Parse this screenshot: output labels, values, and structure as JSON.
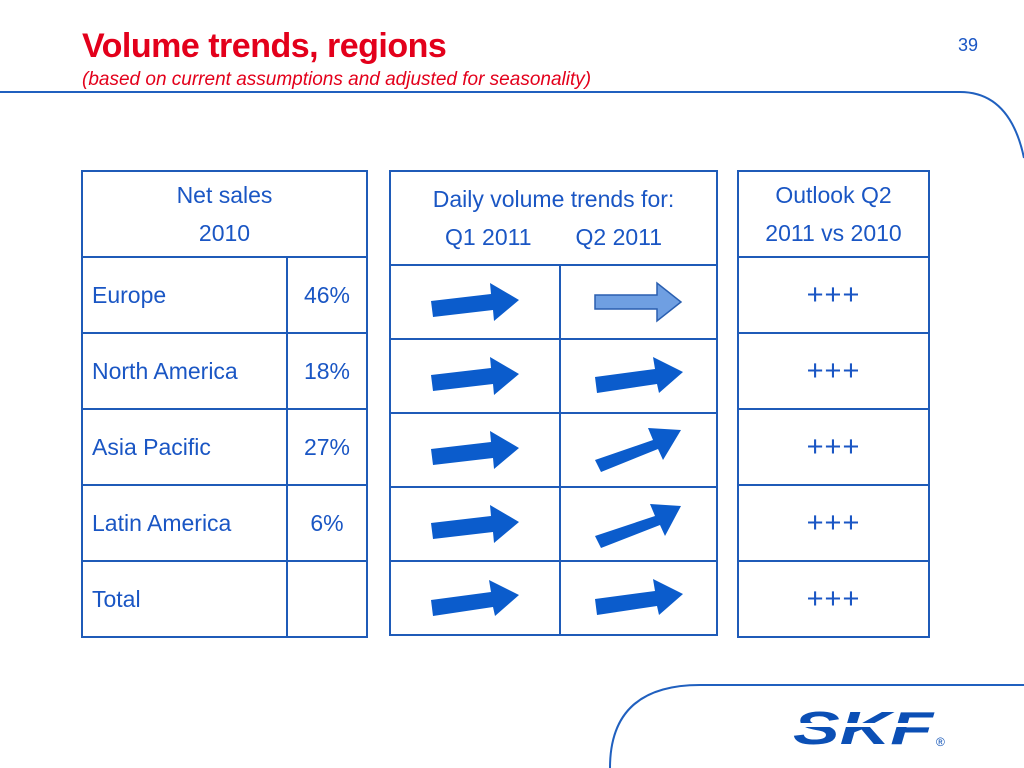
{
  "slide": {
    "title": "Volume trends, regions",
    "subtitle": "(based on current assumptions and adjusted for seasonality)",
    "page_number": "39"
  },
  "net_sales_table": {
    "header_line1": "Net sales",
    "header_line2": "2010",
    "rows": [
      {
        "region": "Europe",
        "share": "46%"
      },
      {
        "region": "North America",
        "share": "18%"
      },
      {
        "region": "Asia Pacific",
        "share": "27%"
      },
      {
        "region": "Latin America",
        "share": "6%"
      },
      {
        "region": "Total",
        "share": ""
      }
    ]
  },
  "trends_table": {
    "header_line1": "Daily volume trends for:",
    "col_q1": "Q1 2011",
    "col_q2": "Q2 2011",
    "rows": [
      {
        "q1_arrow": "arrow-right-icon",
        "q2_arrow": "arrow-right-outline-icon"
      },
      {
        "q1_arrow": "arrow-right-icon",
        "q2_arrow": "arrow-right-icon"
      },
      {
        "q1_arrow": "arrow-right-icon",
        "q2_arrow": "arrow-up-right-icon"
      },
      {
        "q1_arrow": "arrow-right-icon",
        "q2_arrow": "arrow-up-right-icon"
      },
      {
        "q1_arrow": "arrow-right-icon",
        "q2_arrow": "arrow-right-icon"
      }
    ]
  },
  "outlook_table": {
    "header_line1": "Outlook Q2",
    "header_line2": "2011 vs 2010",
    "rows": [
      "+++",
      "+++",
      "+++",
      "+++",
      "+++"
    ]
  },
  "logo": {
    "text": "SKF",
    "registered": "®"
  },
  "colors": {
    "title": "#e3001b",
    "text": "#1a56c4",
    "border": "#1f5bb8",
    "arrow": "#0b5ccc",
    "arrow_light": "#6f9fe2"
  }
}
